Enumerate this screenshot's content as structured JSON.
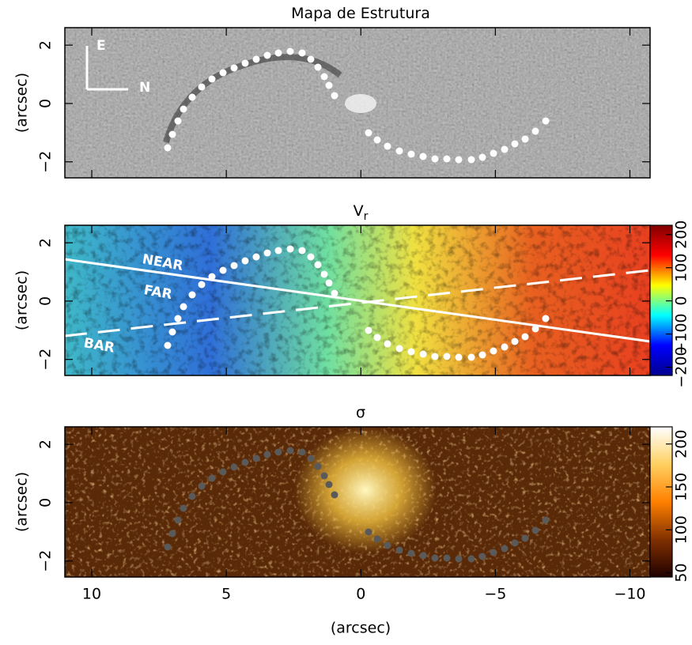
{
  "chart_data": [
    {
      "type": "heatmap",
      "title": "Mapa de Estrutura",
      "ylabel": "(arcsec)",
      "ylim": [
        -2.55,
        2.6
      ],
      "yticks": [
        2,
        0,
        {
          "value": -2,
          "label": "−2"
        }
      ],
      "annotations": [
        "E",
        "N"
      ],
      "colormap": "gray"
    },
    {
      "type": "heatmap",
      "title": "V",
      "title_subscript": "r",
      "ylabel": "(arcsec)",
      "ylim": [
        -2.55,
        2.6
      ],
      "yticks": [
        2,
        0,
        {
          "value": -2,
          "label": "−2"
        }
      ],
      "annotations": [
        "NEAR",
        "FAR",
        "BAR"
      ],
      "colormap": "jet",
      "clim": [
        -225,
        228
      ],
      "cticks": [
        {
          "value": -200,
          "label": "−200"
        },
        {
          "value": -100,
          "label": "−100"
        },
        0,
        100,
        200
      ]
    },
    {
      "type": "heatmap",
      "title": "σ",
      "ylabel": "(arcsec)",
      "xlabel": "(arcsec)",
      "xlim": [
        11,
        -10.75
      ],
      "xticks": [
        10,
        5,
        0,
        {
          "value": -5,
          "label": "−5"
        },
        {
          "value": -10,
          "label": "−10"
        }
      ],
      "ylim": [
        -2.55,
        2.6
      ],
      "yticks": [
        2,
        0,
        {
          "value": -2,
          "label": "−2"
        }
      ],
      "colormap": "afmhot",
      "clim": [
        45,
        220
      ],
      "cticks": [
        50,
        100,
        150,
        200
      ]
    }
  ]
}
